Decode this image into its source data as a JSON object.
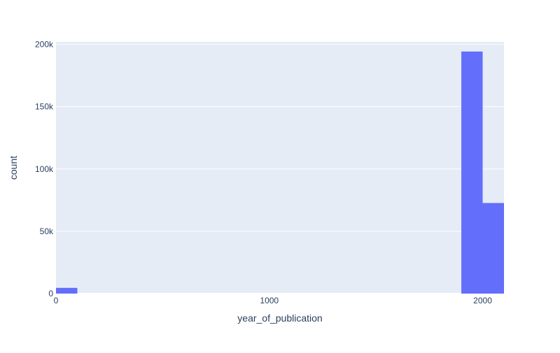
{
  "chart_data": {
    "type": "bar",
    "title": "",
    "xlabel": "year_of_publication",
    "ylabel": "count",
    "xlim": [
      0,
      2100
    ],
    "ylim": [
      0,
      202000
    ],
    "x_ticks": [
      0,
      1000,
      2000
    ],
    "x_tick_labels": [
      "0",
      "1000",
      "2000"
    ],
    "y_ticks": [
      0,
      50000,
      100000,
      150000,
      200000
    ],
    "y_tick_labels": [
      "0",
      "50k",
      "100k",
      "150k",
      "200k"
    ],
    "bin_size": 100,
    "bins": [
      {
        "x0": 0,
        "x1": 100,
        "count": 4600
      },
      {
        "x0": 1900,
        "x1": 2000,
        "count": 194300
      },
      {
        "x0": 2000,
        "x1": 2100,
        "count": 72700
      }
    ],
    "grid": true,
    "colors": {
      "plot_bg": "#E5ECF6",
      "grid": "#ffffff",
      "bar": "#636EFA",
      "text": "#2a3f5f"
    }
  }
}
